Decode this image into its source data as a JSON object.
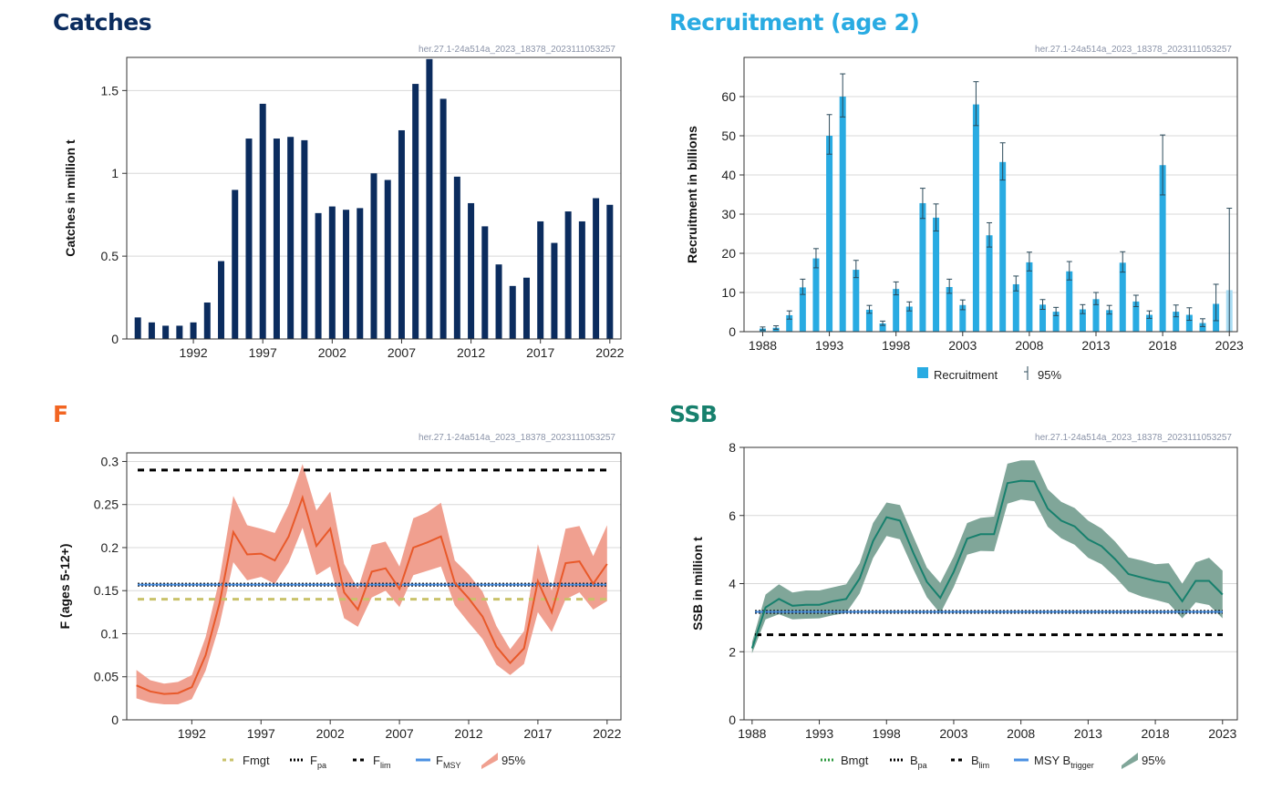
{
  "chart_data": [
    {
      "id": "catches",
      "type": "bar",
      "title": "Catches",
      "title_color": "#0b2c5e",
      "bar_color": "#0b2c5e",
      "code": "her.27.1-24a514a_2023_18378_2023111053257",
      "ylabel": "Catches in million t",
      "xlabel": "",
      "ylim": [
        0,
        1.7
      ],
      "yticks": [
        0,
        0.5,
        1,
        1.5
      ],
      "ytick_labels": [
        "0",
        "0.5",
        "1",
        "1.5"
      ],
      "xticks": [
        1992,
        1997,
        2002,
        2007,
        2012,
        2017,
        2022
      ],
      "years": [
        1988,
        1989,
        1990,
        1991,
        1992,
        1993,
        1994,
        1995,
        1996,
        1997,
        1998,
        1999,
        2000,
        2001,
        2002,
        2003,
        2004,
        2005,
        2006,
        2007,
        2008,
        2009,
        2010,
        2011,
        2012,
        2013,
        2014,
        2015,
        2016,
        2017,
        2018,
        2019,
        2020,
        2021,
        2022
      ],
      "values": [
        0.13,
        0.1,
        0.08,
        0.08,
        0.1,
        0.22,
        0.47,
        0.9,
        1.21,
        1.42,
        1.21,
        1.22,
        1.2,
        0.76,
        0.8,
        0.78,
        0.79,
        1.0,
        0.96,
        1.26,
        1.54,
        1.69,
        1.45,
        0.98,
        0.82,
        0.68,
        0.45,
        0.32,
        0.37,
        0.71,
        0.58,
        0.77,
        0.71,
        0.85,
        0.81
      ]
    },
    {
      "id": "recruitment",
      "type": "bar",
      "title": "Recruitment (age 2)",
      "title_color": "#29abe2",
      "bar_color": "#29abe2",
      "bar_color_last": "#a9dcf3",
      "code": "her.27.1-24a514a_2023_18378_2023111053257",
      "ylabel": "Recruitment in billions",
      "xlabel": "",
      "ylim": [
        0,
        70
      ],
      "yticks": [
        0,
        10,
        20,
        30,
        40,
        50,
        60
      ],
      "ytick_labels": [
        "0",
        "10",
        "20",
        "30",
        "40",
        "50",
        "60"
      ],
      "xticks": [
        1988,
        1993,
        1998,
        2003,
        2008,
        2013,
        2018,
        2023
      ],
      "years": [
        1988,
        1989,
        1990,
        1991,
        1992,
        1993,
        1994,
        1995,
        1996,
        1997,
        1998,
        1999,
        2000,
        2001,
        2002,
        2003,
        2004,
        2005,
        2006,
        2007,
        2008,
        2009,
        2010,
        2011,
        2012,
        2013,
        2014,
        2015,
        2016,
        2017,
        2018,
        2019,
        2020,
        2021,
        2022,
        2023
      ],
      "values": [
        0.8,
        1.0,
        4.2,
        11.3,
        18.7,
        50,
        60,
        15.8,
        5.6,
        2.1,
        10.9,
        6.4,
        32.8,
        29.1,
        11.4,
        6.8,
        58,
        24.6,
        43.3,
        12.1,
        17.7,
        6.9,
        5.1,
        15.4,
        5.7,
        8.3,
        5.5,
        17.6,
        7.7,
        4.3,
        42.5,
        5.1,
        4.3,
        2.2,
        7.1,
        10.6
      ],
      "ci_low": [
        0.4,
        0.6,
        3.2,
        9.5,
        16.3,
        45.3,
        54.8,
        13.8,
        4.7,
        1.6,
        9.4,
        5.3,
        28.9,
        25.7,
        9.8,
        5.6,
        52.6,
        21.6,
        38.7,
        10.4,
        15.5,
        5.7,
        4.1,
        13.2,
        4.6,
        6.9,
        4.5,
        15.2,
        6.4,
        3.4,
        34.9,
        3.8,
        2.9,
        1.3,
        2.8,
        0
      ],
      "ci_high": [
        1.2,
        1.5,
        5.3,
        13.4,
        21.2,
        55.4,
        65.8,
        18.2,
        6.7,
        2.7,
        12.7,
        7.6,
        36.6,
        32.6,
        13.4,
        8.1,
        63.8,
        27.8,
        48.2,
        14.2,
        20.3,
        8.2,
        6.2,
        17.9,
        6.9,
        10,
        6.7,
        20.4,
        9.3,
        5.3,
        50.2,
        6.8,
        6.1,
        3.3,
        12.1,
        31.5
      ],
      "legend": [
        "Recruitment",
        "95%"
      ]
    },
    {
      "id": "f",
      "type": "line",
      "title": "F",
      "title_color": "#f26522",
      "line_color": "#e8592a",
      "band_color": "#f0a090",
      "code": "her.27.1-24a514a_2023_18378_2023111053257",
      "ylabel": "F (ages 5-12+)",
      "xlabel": "",
      "ylim": [
        0,
        0.31
      ],
      "yticks": [
        0,
        0.05,
        0.1,
        0.15,
        0.2,
        0.25,
        0.3
      ],
      "ytick_labels": [
        "0",
        "0.05",
        "0.1",
        "0.15",
        "0.2",
        "0.25",
        "0.3"
      ],
      "xticks": [
        1992,
        1997,
        2002,
        2007,
        2012,
        2017,
        2022
      ],
      "years": [
        1988,
        1989,
        1990,
        1991,
        1992,
        1993,
        1994,
        1995,
        1996,
        1997,
        1998,
        1999,
        2000,
        2001,
        2002,
        2003,
        2004,
        2005,
        2006,
        2007,
        2008,
        2009,
        2010,
        2011,
        2012,
        2013,
        2014,
        2015,
        2016,
        2017,
        2018,
        2019,
        2020,
        2021,
        2022
      ],
      "values": [
        0.04,
        0.033,
        0.03,
        0.031,
        0.038,
        0.075,
        0.135,
        0.218,
        0.192,
        0.193,
        0.185,
        0.213,
        0.258,
        0.202,
        0.222,
        0.148,
        0.128,
        0.172,
        0.176,
        0.152,
        0.2,
        0.206,
        0.213,
        0.159,
        0.141,
        0.12,
        0.085,
        0.066,
        0.083,
        0.161,
        0.125,
        0.182,
        0.184,
        0.158,
        0.181
      ],
      "ci_low": [
        0.025,
        0.02,
        0.018,
        0.018,
        0.024,
        0.057,
        0.11,
        0.183,
        0.162,
        0.166,
        0.158,
        0.183,
        0.223,
        0.168,
        0.178,
        0.118,
        0.108,
        0.142,
        0.15,
        0.131,
        0.168,
        0.173,
        0.178,
        0.133,
        0.113,
        0.094,
        0.064,
        0.052,
        0.065,
        0.125,
        0.102,
        0.14,
        0.148,
        0.128,
        0.138
      ],
      "ci_high": [
        0.058,
        0.046,
        0.042,
        0.044,
        0.052,
        0.096,
        0.163,
        0.26,
        0.226,
        0.222,
        0.217,
        0.25,
        0.297,
        0.243,
        0.265,
        0.181,
        0.152,
        0.203,
        0.207,
        0.178,
        0.234,
        0.241,
        0.252,
        0.185,
        0.169,
        0.149,
        0.109,
        0.082,
        0.103,
        0.204,
        0.15,
        0.222,
        0.225,
        0.19,
        0.226
      ],
      "reference_lines": [
        {
          "name": "Fmgt",
          "value": 0.14,
          "color": "#c9c26b",
          "style": "dashed"
        },
        {
          "name": "Fpa",
          "value": 0.157,
          "color": "#000000",
          "style": "dotted"
        },
        {
          "name": "Flim",
          "value": 0.29,
          "color": "#000000",
          "style": "dashed"
        },
        {
          "name": "FMSY",
          "value": 0.157,
          "color": "#4a90e2",
          "style": "solid"
        }
      ],
      "legend": [
        {
          "text": "Fmgt",
          "sub": ""
        },
        {
          "text": "F",
          "sub": "pa"
        },
        {
          "text": "F",
          "sub": "lim"
        },
        {
          "text": "F",
          "sub": "MSY"
        },
        {
          "text": "95%",
          "sub": ""
        }
      ]
    },
    {
      "id": "ssb",
      "type": "line",
      "title": "SSB",
      "title_color": "#17806d",
      "line_color": "#17806d",
      "band_color": "#80a699",
      "code": "her.27.1-24a514a_2023_18378_2023111053257",
      "ylabel": "SSB in million t",
      "xlabel": "",
      "ylim": [
        0,
        8
      ],
      "yticks": [
        0,
        2,
        4,
        6,
        8
      ],
      "ytick_labels": [
        "0",
        "2",
        "4",
        "6",
        "8"
      ],
      "xticks": [
        1988,
        1993,
        1998,
        2003,
        2008,
        2013,
        2018,
        2023
      ],
      "years": [
        1988,
        1989,
        1990,
        1991,
        1992,
        1993,
        1994,
        1995,
        1996,
        1997,
        1998,
        1999,
        2000,
        2001,
        2002,
        2003,
        2004,
        2005,
        2006,
        2007,
        2008,
        2009,
        2010,
        2011,
        2012,
        2013,
        2014,
        2015,
        2016,
        2017,
        2018,
        2019,
        2020,
        2021,
        2022,
        2023
      ],
      "values": [
        2.1,
        3.3,
        3.55,
        3.35,
        3.38,
        3.38,
        3.48,
        3.55,
        4.15,
        5.25,
        5.95,
        5.85,
        4.9,
        4.05,
        3.58,
        4.35,
        5.32,
        5.45,
        5.45,
        6.95,
        7.02,
        7.0,
        6.2,
        5.85,
        5.68,
        5.3,
        5.1,
        4.72,
        4.28,
        4.18,
        4.08,
        4.02,
        3.48,
        4.08,
        4.08,
        3.68
      ],
      "ci_low": [
        1.95,
        2.95,
        3.1,
        2.95,
        2.97,
        2.98,
        3.07,
        3.14,
        3.71,
        4.75,
        5.4,
        5.3,
        4.42,
        3.6,
        3.12,
        3.9,
        4.85,
        4.96,
        4.95,
        6.35,
        6.47,
        6.42,
        5.67,
        5.33,
        5.14,
        4.76,
        4.57,
        4.2,
        3.77,
        3.62,
        3.52,
        3.42,
        2.98,
        3.45,
        3.37,
        2.98
      ],
      "ci_high": [
        2.28,
        3.68,
        3.98,
        3.74,
        3.8,
        3.8,
        3.89,
        3.98,
        4.6,
        5.78,
        6.38,
        6.31,
        5.38,
        4.47,
        4.02,
        4.8,
        5.78,
        5.93,
        5.97,
        7.52,
        7.62,
        7.62,
        6.77,
        6.4,
        6.22,
        5.85,
        5.62,
        5.24,
        4.77,
        4.68,
        4.57,
        4.6,
        4.0,
        4.62,
        4.76,
        4.38
      ],
      "reference_lines": [
        {
          "name": "Bmgt",
          "value": 3.17,
          "color": "#2e9a3f",
          "style": "dotted"
        },
        {
          "name": "Bpa",
          "value": 3.17,
          "color": "#000000",
          "style": "dotted"
        },
        {
          "name": "Blim",
          "value": 2.5,
          "color": "#000000",
          "style": "dashed"
        },
        {
          "name": "MSY Btrigger",
          "value": 3.17,
          "color": "#4a90e2",
          "style": "solid"
        }
      ],
      "legend": [
        {
          "text": "Bmgt",
          "sub": ""
        },
        {
          "text": "B",
          "sub": "pa"
        },
        {
          "text": "B",
          "sub": "lim"
        },
        {
          "text": "MSY B",
          "sub": "trigger"
        },
        {
          "text": "95%",
          "sub": ""
        }
      ]
    }
  ]
}
